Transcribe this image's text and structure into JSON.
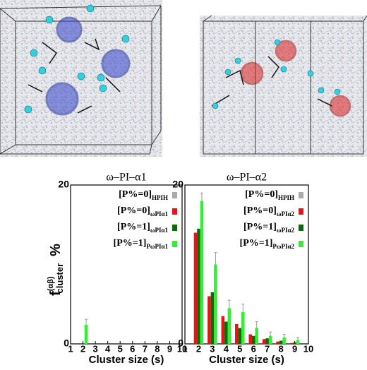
{
  "chart_data": [
    {
      "type": "bar",
      "title": "ω–PI–α1",
      "y_label": {
        "main": "f",
        "superscript": "(αβ)",
        "subscript": "cluster",
        "suffix": "%"
      },
      "x_label": "Cluster size (s)",
      "x": [
        2,
        3,
        4,
        5,
        6,
        7,
        8,
        9
      ],
      "xlim": [
        1,
        10
      ],
      "xticks": [
        1,
        2,
        3,
        4,
        5,
        6,
        7,
        8,
        9,
        10
      ],
      "ylim": [
        0,
        20
      ],
      "yticks": [
        0,
        20
      ],
      "series": [
        {
          "name": "[P%=0]",
          "subscript": "HPIH",
          "color": "#aaaaaa",
          "values": [
            null,
            null,
            null,
            null,
            null,
            null,
            null,
            null
          ]
        },
        {
          "name": "[P%=0]",
          "subscript": "ωPIα1",
          "color": "#ee1111",
          "values": [
            null,
            null,
            null,
            null,
            null,
            null,
            null,
            null
          ]
        },
        {
          "name": "[P%=1]",
          "subscript": "ωPIα1",
          "color": "#0b6b0b",
          "values": [
            null,
            null,
            null,
            null,
            null,
            null,
            null,
            null
          ]
        },
        {
          "name": "[P%=1]",
          "subscript": "PωPIα1",
          "color": "#33ee33",
          "values": [
            2.4,
            null,
            null,
            null,
            null,
            null,
            null,
            null
          ],
          "errors": [
            0.7,
            null,
            null,
            null,
            null,
            null,
            null,
            null
          ]
        }
      ]
    },
    {
      "type": "bar",
      "title": "ω–PI–α2",
      "x_label": "Cluster size (s)",
      "x": [
        2,
        3,
        4,
        5,
        6,
        7,
        8,
        9
      ],
      "xlim": [
        1,
        10
      ],
      "xticks": [
        1,
        2,
        3,
        4,
        5,
        6,
        7,
        8,
        9,
        10
      ],
      "ylim": [
        0,
        20
      ],
      "yticks": [
        0,
        20
      ],
      "series": [
        {
          "name": "[P%=0]",
          "subscript": "HPIH",
          "color": "#aaaaaa",
          "values": [
            null,
            null,
            null,
            null,
            null,
            null,
            null,
            null
          ]
        },
        {
          "name": "[P%=0]",
          "subscript": "ωPIα2",
          "color": "#ee1111",
          "values": [
            14,
            6,
            3.5,
            2.5,
            1.2,
            0.6,
            0.3,
            0.1
          ]
        },
        {
          "name": "[P%=1]",
          "subscript": "ωPIα2",
          "color": "#0b6b0b",
          "values": [
            14.5,
            6.5,
            2.8,
            2,
            1,
            0.7,
            0.4,
            0.2
          ]
        },
        {
          "name": "[P%=1]",
          "subscript": "PωPIα2",
          "color": "#33ee33",
          "values": [
            18,
            10,
            4.5,
            4,
            2,
            1,
            0.8,
            0.5
          ],
          "errors": [
            1,
            1.5,
            1,
            1,
            0.8,
            0.5,
            0.4,
            0.3
          ]
        }
      ]
    }
  ]
}
